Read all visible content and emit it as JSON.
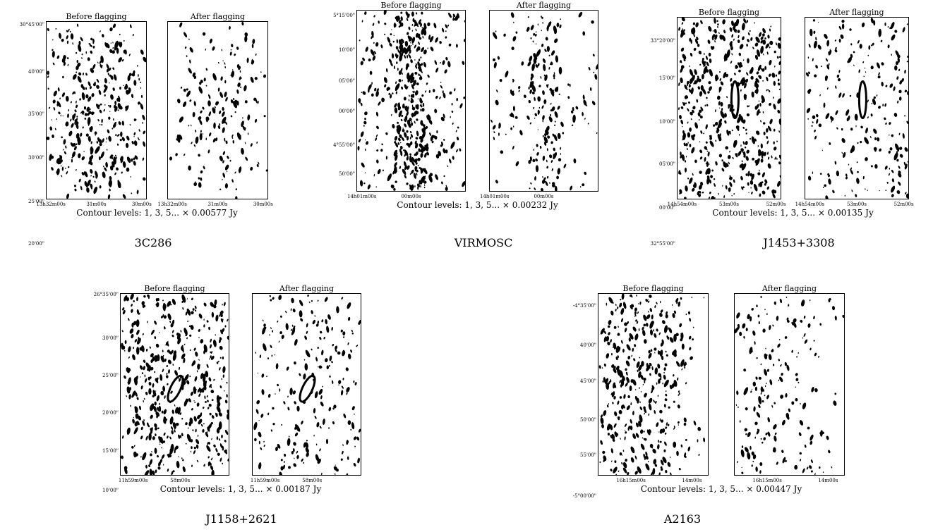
{
  "figure": {
    "groups": [
      {
        "name": "3C286",
        "caption": "Contour levels: 1, 3, 5... × 0.00577 Jy",
        "before_title": "Before flagging",
        "after_title": "After flagging",
        "y_ticks": [
          "30°45'00\"",
          "40'00\"",
          "35'00\"",
          "30'00\"",
          "25'00\"",
          "20'00\""
        ],
        "x_ticks": [
          "13h32m00s",
          "31m00s",
          "30m00s"
        ]
      },
      {
        "name": "VIRMOSC",
        "caption": "Contour levels: 1, 3, 5... × 0.00232 Jy",
        "before_title": "Before flagging",
        "after_title": "After flagging",
        "y_ticks": [
          "5°15'00\"",
          "10'00\"",
          "05'00\"",
          "00'00\"",
          "4°55'00\"",
          "50'00\""
        ],
        "x_ticks": [
          "14h01m00s",
          "00m00s"
        ]
      },
      {
        "name": "J1453+3308",
        "caption": "Contour levels: 1, 3, 5... × 0.00135 Jy",
        "before_title": "Before flagging",
        "after_title": "After flagging",
        "y_ticks": [
          "33°20'00\"",
          "15'00\"",
          "10'00\"",
          "05'00\"",
          "00'00\"",
          "32°55'00\""
        ],
        "x_ticks": [
          "14h54m00s",
          "53m00s",
          "52m00s"
        ]
      },
      {
        "name": "J1158+2621",
        "caption": "Contour levels: 1, 3, 5... × 0.00187 Jy",
        "before_title": "Before flagging",
        "after_title": "After flagging",
        "y_ticks": [
          "26°35'00\"",
          "30'00\"",
          "25'00\"",
          "20'00\"",
          "15'00\"",
          "10'00\""
        ],
        "x_ticks": [
          "11h59m00s",
          "58m00s"
        ]
      },
      {
        "name": "A2163",
        "caption": "Contour levels: 1, 3, 5... × 0.00447 Jy",
        "before_title": "Before flagging",
        "after_title": "After flagging",
        "y_ticks": [
          "-4°35'00\"",
          "40'00\"",
          "45'00\"",
          "50'00\"",
          "55'00\"",
          "-5°00'00\""
        ],
        "x_ticks": [
          "16h15m00s",
          "14m00s"
        ]
      }
    ]
  }
}
